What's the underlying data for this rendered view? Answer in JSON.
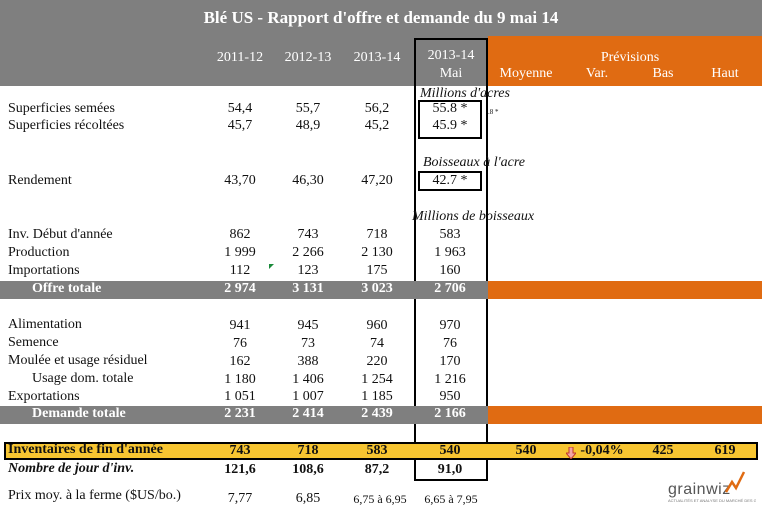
{
  "title": "Blé US - Rapport d'offre et demande du 9 mai 14",
  "columns": [
    "2011-12",
    "2012-13",
    "2013-14",
    "2013-14",
    "Mai"
  ],
  "previsions": {
    "label": "Prévisions",
    "cols": [
      "Moyenne",
      "Var.",
      "Bas",
      "Haut"
    ]
  },
  "units": {
    "acres": "Millions d'acres",
    "boisseaux_acre": "Boisseaux à l'acre",
    "boisseaux": "Millions de boisseaux"
  },
  "small_note": ".8 *",
  "rows": [
    {
      "label": "Superficies semées",
      "v": [
        "54,4",
        "55,7",
        "56,2",
        "55.8 *"
      ]
    },
    {
      "label": "Superficies récoltées",
      "v": [
        "45,7",
        "48,9",
        "45,2",
        "45.9 *"
      ]
    },
    {
      "label": "Rendement",
      "v": [
        "43,70",
        "46,30",
        "47,20",
        "42.7 *"
      ]
    },
    {
      "label": "Inv. Début d'année",
      "v": [
        "862",
        "743",
        "718",
        "583"
      ]
    },
    {
      "label": "Production",
      "v": [
        "1 999",
        "2 266",
        "2 130",
        "1 963"
      ]
    },
    {
      "label": "Importations",
      "v": [
        "112",
        "123",
        "175",
        "160"
      ]
    },
    {
      "label": "Offre totale",
      "v": [
        "2 974",
        "3 131",
        "3 023",
        "2 706"
      ]
    },
    {
      "label": "Alimentation",
      "v": [
        "941",
        "945",
        "960",
        "970"
      ]
    },
    {
      "label": "Semence",
      "v": [
        "76",
        "73",
        "74",
        "76"
      ]
    },
    {
      "label": "Moulée et usage résiduel",
      "v": [
        "162",
        "388",
        "220",
        "170"
      ]
    },
    {
      "label": "Usage dom. totale",
      "v": [
        "1 180",
        "1 406",
        "1 254",
        "1 216"
      ]
    },
    {
      "label": "Exportations",
      "v": [
        "1 051",
        "1 007",
        "1 185",
        "950"
      ]
    },
    {
      "label": "Demande totale",
      "v": [
        "2 231",
        "2 414",
        "2 439",
        "2 166"
      ]
    },
    {
      "label": "Inventaires de fin d'année",
      "v": [
        "743",
        "718",
        "583",
        "540"
      ],
      "prev": [
        "540",
        "-0,04%",
        "425",
        "619"
      ]
    },
    {
      "label": "Nombre de jour d'inv.",
      "v": [
        "121,6",
        "108,6",
        "87,2",
        "91,0"
      ]
    },
    {
      "label": "Prix moy. à la ferme ($US/bo.)",
      "v": [
        "7,77",
        "6,85",
        "6,75 à 6,95",
        "6,65 à 7,95"
      ]
    }
  ],
  "logo": {
    "name": "grainwiz",
    "tagline": "ACTUALITÉS ET ANALYSE DU MARCHÉ DES GRAINS"
  },
  "colors": {
    "gray": "#7f7f7f",
    "orange": "#e06b12",
    "yellow": "#f7c531"
  }
}
